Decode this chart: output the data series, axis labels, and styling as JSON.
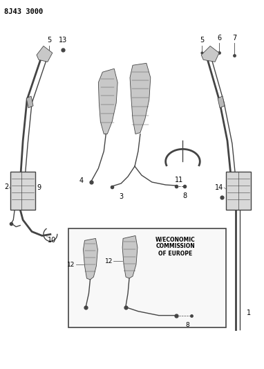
{
  "title": "8J43 3000",
  "bg": "#ffffff",
  "lc": "#444444",
  "fig_w": 3.82,
  "fig_h": 5.33,
  "dpi": 100,
  "box_label": "W/ECONOMIC\nCOMMISSION\nOF EUROPE"
}
